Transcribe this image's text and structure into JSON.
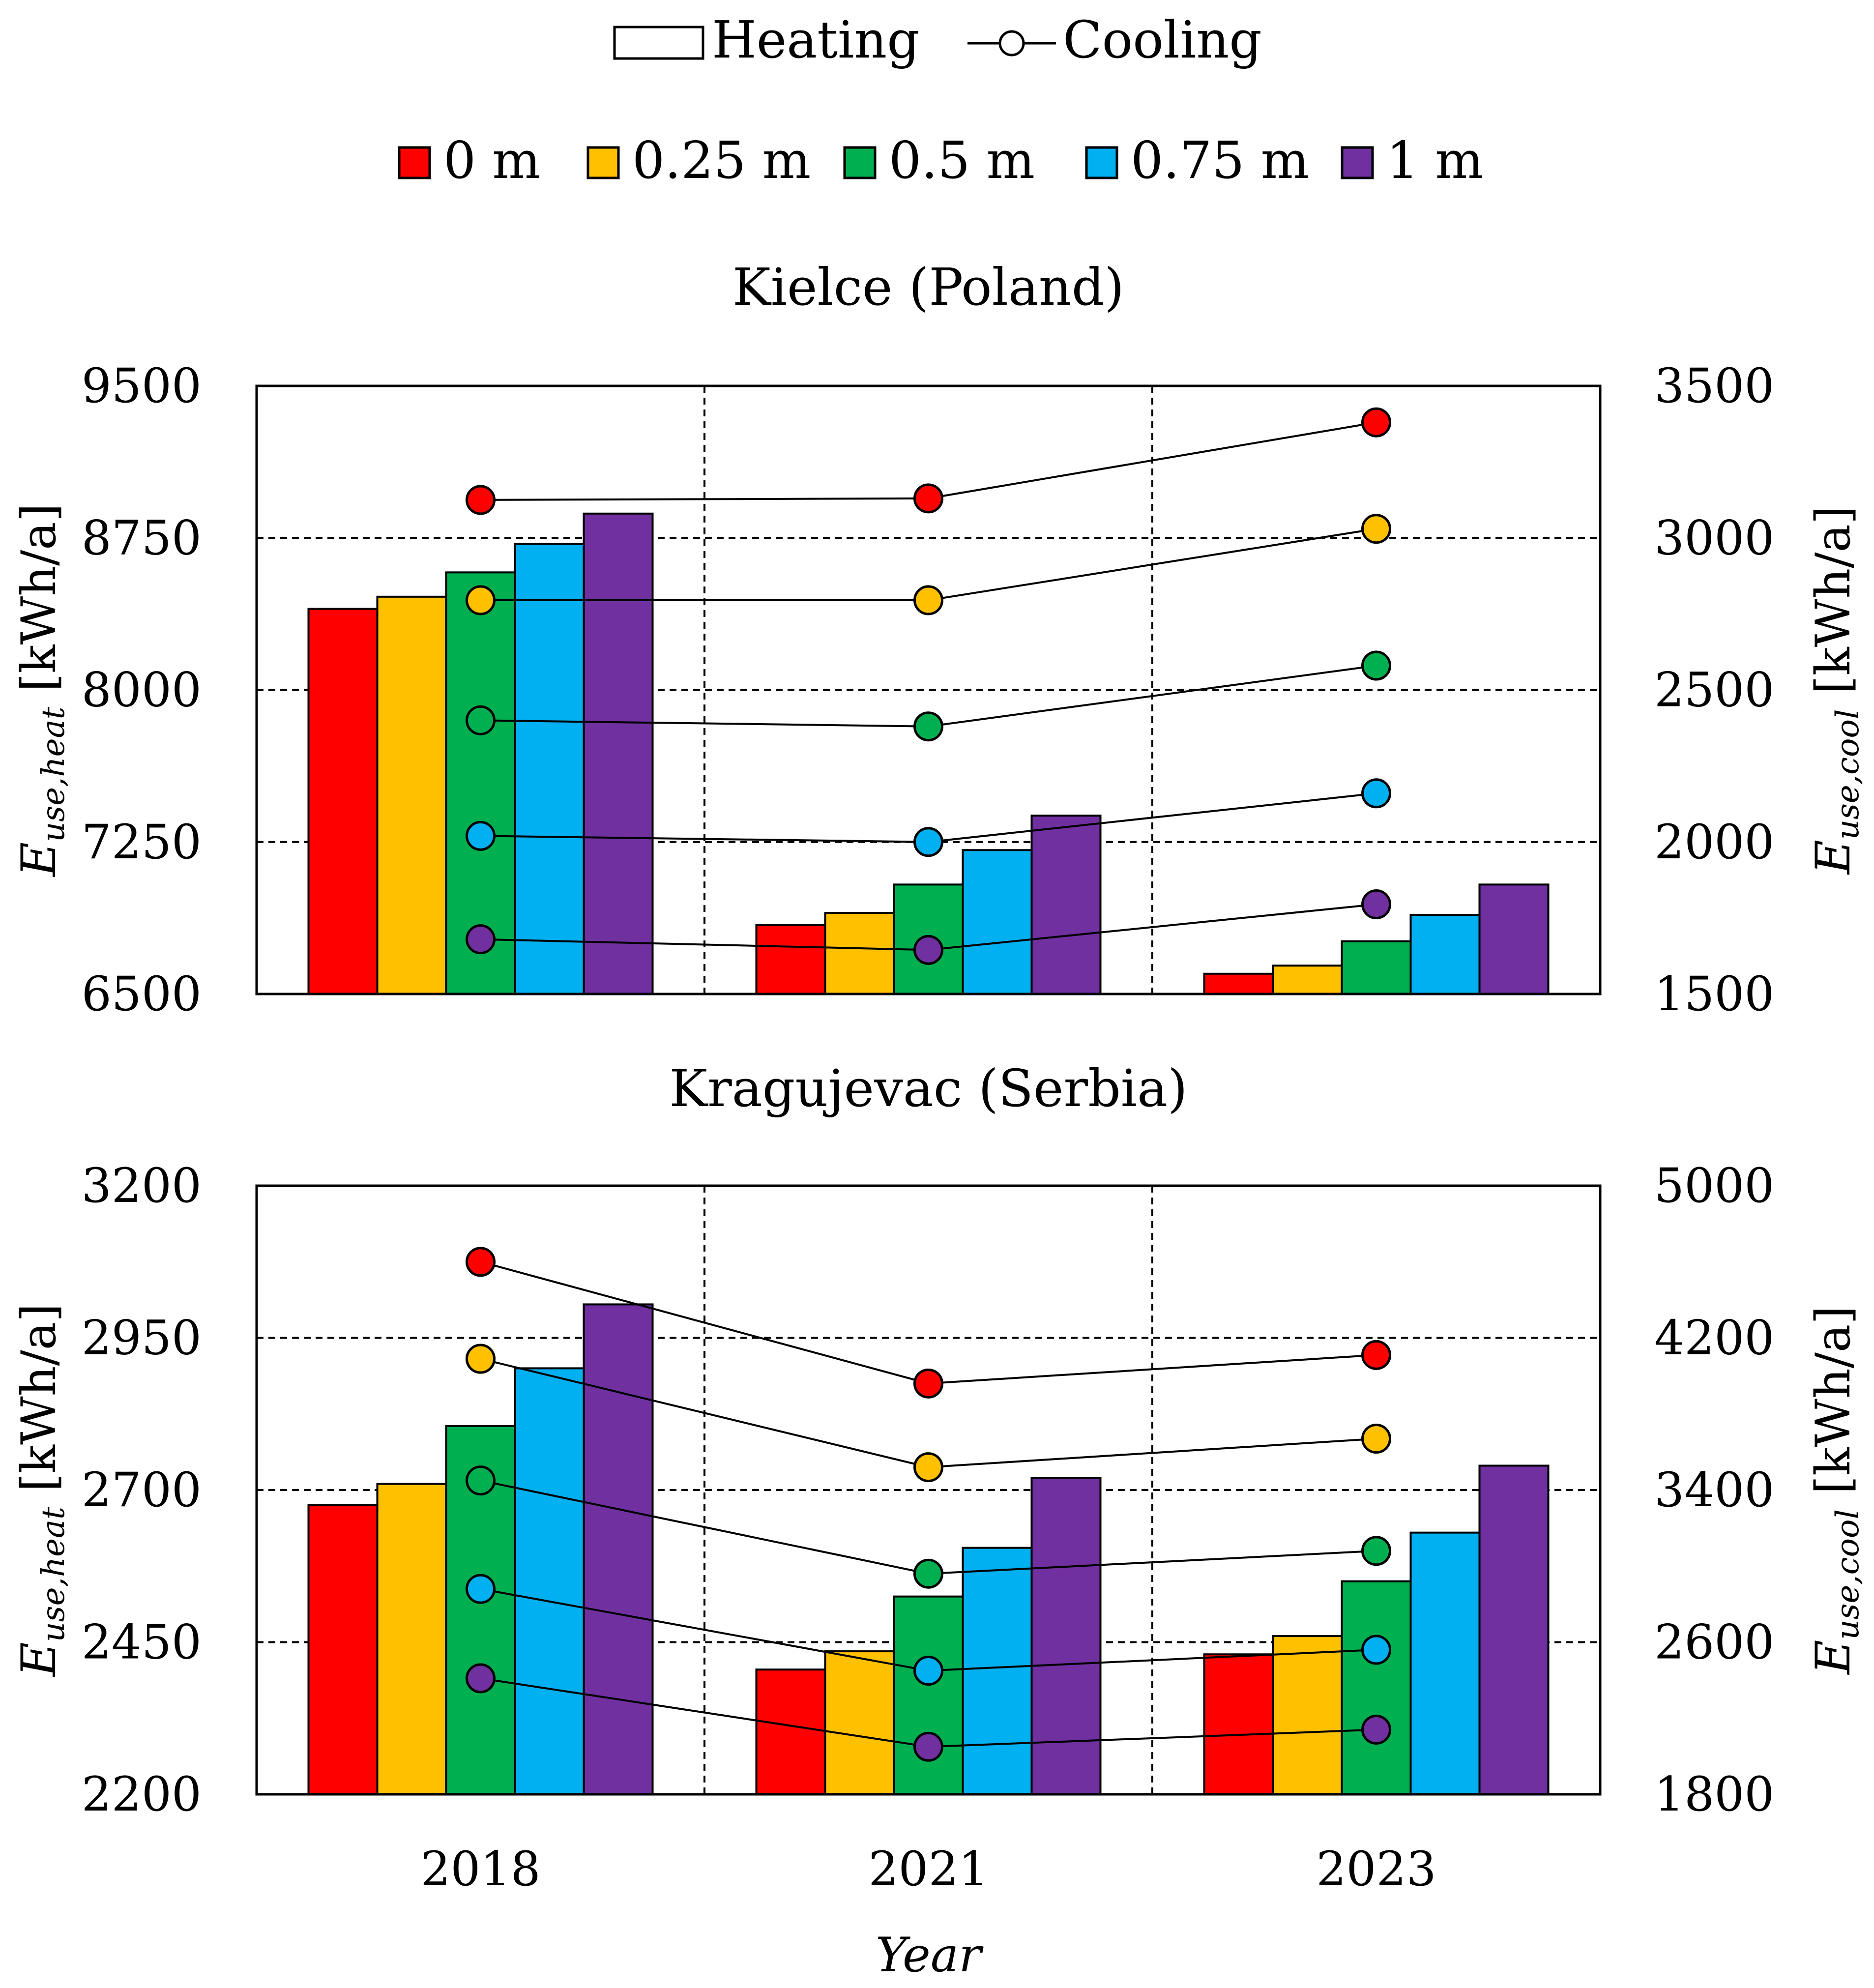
{
  "legend": {
    "type_items": [
      {
        "label": "Heating",
        "symbol": "bar"
      },
      {
        "label": "Cooling",
        "symbol": "line-marker"
      }
    ],
    "series_items": [
      {
        "label": "0 m",
        "color": "#ff0000"
      },
      {
        "label": "0.25 m",
        "color": "#ffc000"
      },
      {
        "label": "0.5 m",
        "color": "#00b050"
      },
      {
        "label": "0.75 m",
        "color": "#00b0f0"
      },
      {
        "label": "1 m",
        "color": "#7030a0"
      }
    ]
  },
  "chart_data": [
    {
      "type": "bar+line",
      "title": "Kielce (Poland)",
      "categories": [
        "2018",
        "2021",
        "2023"
      ],
      "xlabel": "",
      "ylabel_left": {
        "main": "E",
        "sub": "use,heat",
        "unit": " [kWh/a]"
      },
      "ylabel_right": {
        "main": "E",
        "sub": "use,cool",
        "unit": " [kWh/a]"
      },
      "ylim_left": [
        6500,
        9500
      ],
      "yticks_left": [
        6500,
        7250,
        8000,
        8750,
        9500
      ],
      "ylim_right": [
        1500,
        3500
      ],
      "yticks_right": [
        1500,
        2000,
        2500,
        3000,
        3500
      ],
      "heating_series": [
        {
          "name": "0 m",
          "values": [
            8400,
            6840,
            6600
          ]
        },
        {
          "name": "0.25 m",
          "values": [
            8460,
            6900,
            6640
          ]
        },
        {
          "name": "0.5 m",
          "values": [
            8580,
            7040,
            6760
          ]
        },
        {
          "name": "0.75 m",
          "values": [
            8720,
            7210,
            6890
          ]
        },
        {
          "name": "1 m",
          "values": [
            8870,
            7380,
            7040
          ]
        }
      ],
      "cooling_series": [
        {
          "name": "0 m",
          "values": [
            3125,
            3130,
            3380
          ]
        },
        {
          "name": "0.25 m",
          "values": [
            2795,
            2795,
            3030
          ]
        },
        {
          "name": "0.5 m",
          "values": [
            2400,
            2380,
            2580
          ]
        },
        {
          "name": "0.75 m",
          "values": [
            2020,
            2000,
            2160
          ]
        },
        {
          "name": "1 m",
          "values": [
            1680,
            1645,
            1795
          ]
        }
      ]
    },
    {
      "type": "bar+line",
      "title": "Kragujevac (Serbia)",
      "categories": [
        "2018",
        "2021",
        "2023"
      ],
      "xlabel": "Year",
      "ylabel_left": {
        "main": "E",
        "sub": "use,heat",
        "unit": " [kWh/a]"
      },
      "ylabel_right": {
        "main": "E",
        "sub": "use,cool",
        "unit": " [kWh/a]"
      },
      "ylim_left": [
        2200,
        3200
      ],
      "yticks_left": [
        2200,
        2450,
        2700,
        2950,
        3200
      ],
      "ylim_right": [
        1800,
        5000
      ],
      "yticks_right": [
        1800,
        2600,
        3400,
        4200,
        5000
      ],
      "heating_series": [
        {
          "name": "0 m",
          "values": [
            2675,
            2405,
            2430
          ]
        },
        {
          "name": "0.25 m",
          "values": [
            2710,
            2435,
            2460
          ]
        },
        {
          "name": "0.5 m",
          "values": [
            2805,
            2525,
            2550
          ]
        },
        {
          "name": "0.75 m",
          "values": [
            2900,
            2605,
            2630
          ]
        },
        {
          "name": "1 m",
          "values": [
            3005,
            2720,
            2740
          ]
        }
      ],
      "cooling_series": [
        {
          "name": "0 m",
          "values": [
            4600,
            3960,
            4110
          ]
        },
        {
          "name": "0.25 m",
          "values": [
            4090,
            3520,
            3670
          ]
        },
        {
          "name": "0.5 m",
          "values": [
            3450,
            2960,
            3080
          ]
        },
        {
          "name": "0.75 m",
          "values": [
            2880,
            2450,
            2560
          ]
        },
        {
          "name": "1 m",
          "values": [
            2410,
            2050,
            2140
          ]
        }
      ]
    }
  ]
}
